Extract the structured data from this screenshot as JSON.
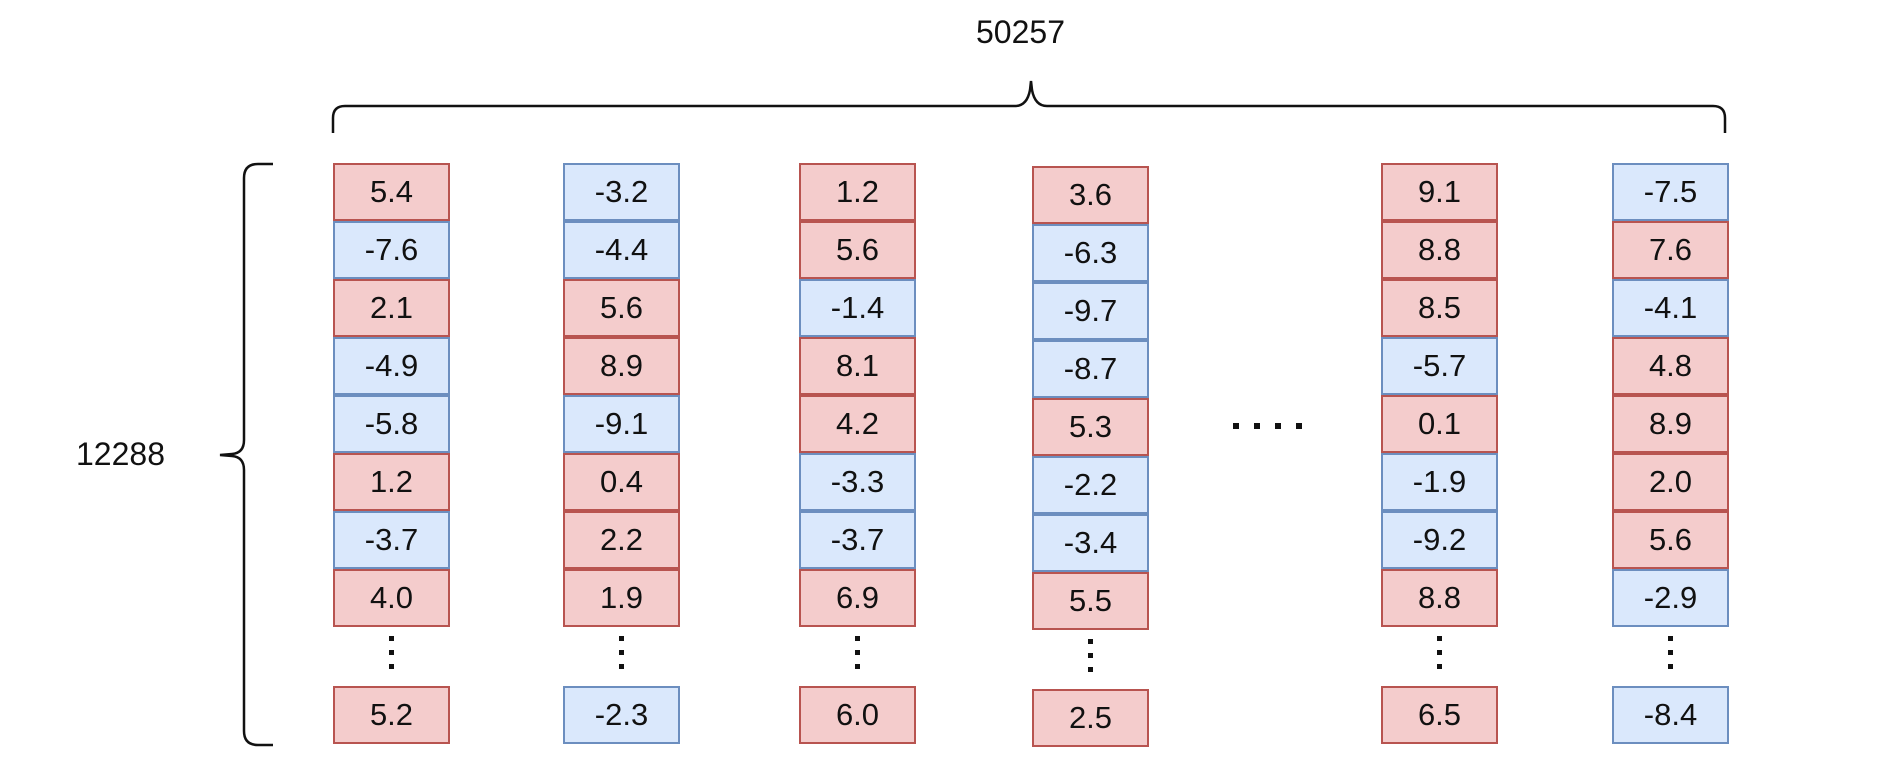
{
  "labels": {
    "width_label": "50257",
    "height_label": "12288"
  },
  "colors": {
    "positive_fill": "#f4cccc",
    "positive_border": "#b85450",
    "negative_fill": "#dae8fc",
    "negative_border": "#6c8ebf"
  },
  "columns": [
    {
      "top": [
        "5.4",
        "-7.6",
        "2.1",
        "-4.9",
        "-5.8",
        "1.2",
        "-3.7",
        "4.0"
      ],
      "bottom": "5.2"
    },
    {
      "top": [
        "-3.2",
        "-4.4",
        "5.6",
        "8.9",
        "-9.1",
        "0.4",
        "2.2",
        "1.9"
      ],
      "bottom": "-2.3"
    },
    {
      "top": [
        "1.2",
        "5.6",
        "-1.4",
        "8.1",
        "4.2",
        "-3.3",
        "-3.7",
        "6.9"
      ],
      "bottom": "6.0"
    },
    {
      "top": [
        "3.6",
        "-6.3",
        "-9.7",
        "-8.7",
        "5.3",
        "-2.2",
        "-3.4",
        "5.5"
      ],
      "bottom": "2.5"
    },
    {
      "top": [
        "9.1",
        "8.8",
        "8.5",
        "-5.7",
        "0.1",
        "-1.9",
        "-9.2",
        "8.8"
      ],
      "bottom": "6.5"
    },
    {
      "top": [
        "-7.5",
        "7.6",
        "-4.1",
        "4.8",
        "8.9",
        "2.0",
        "5.6",
        "-2.9"
      ],
      "bottom": "-8.4"
    }
  ]
}
